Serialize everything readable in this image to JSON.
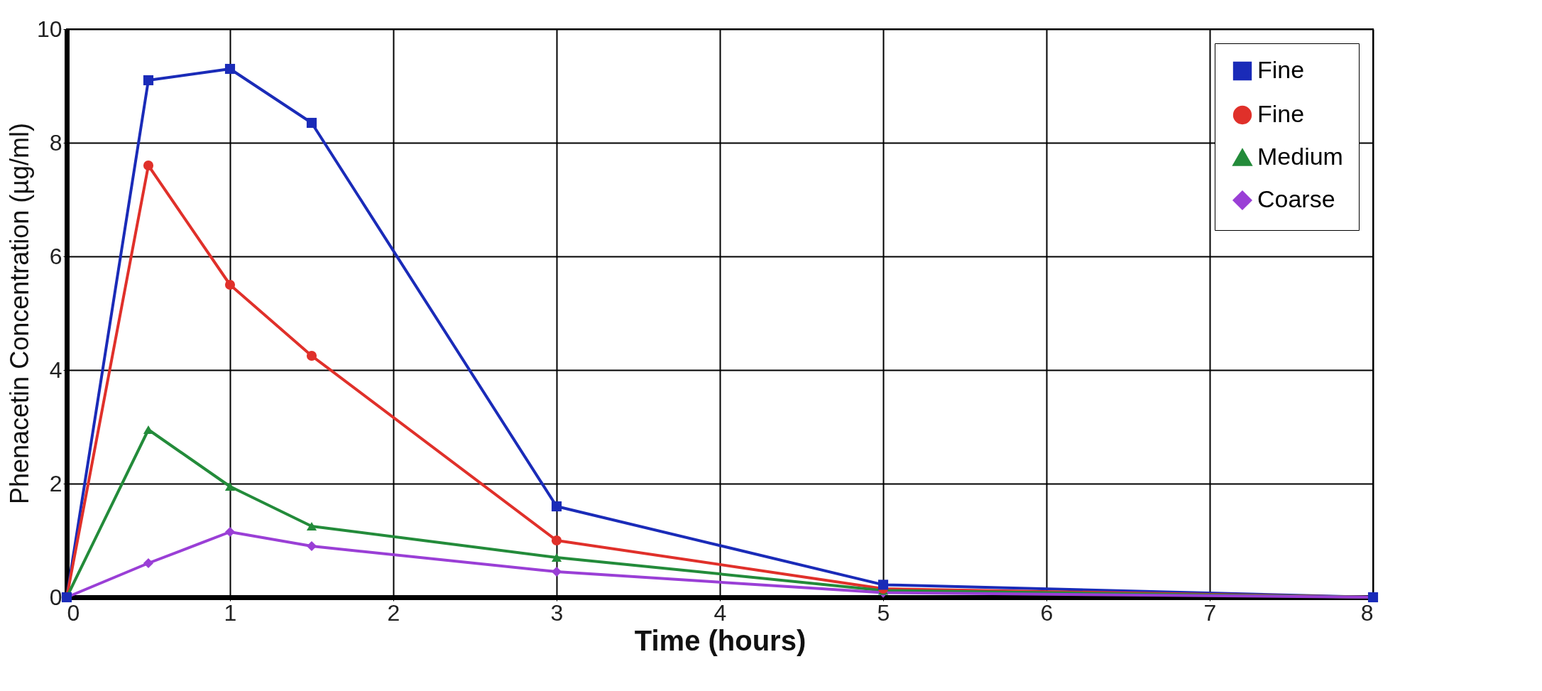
{
  "chart_data": {
    "type": "line",
    "xlabel": "Time (hours)",
    "ylabel": "Phenacetin Concentration (µg/ml)",
    "x": [
      0,
      0.5,
      1,
      1.5,
      3,
      5,
      8
    ],
    "series": [
      {
        "name": "Fine",
        "color": "#1a2bb8",
        "marker": "square",
        "values": [
          0,
          9.1,
          9.3,
          8.35,
          1.6,
          0.22,
          0
        ]
      },
      {
        "name": "Fine",
        "color": "#e0302a",
        "marker": "circle",
        "values": [
          0,
          7.6,
          5.5,
          4.25,
          1.0,
          0.15,
          0
        ]
      },
      {
        "name": "Medium",
        "color": "#238b3a",
        "marker": "triangle",
        "values": [
          0,
          2.95,
          1.95,
          1.25,
          0.7,
          0.12,
          0
        ]
      },
      {
        "name": "Coarse",
        "color": "#9a3fd6",
        "marker": "diamond",
        "values": [
          0,
          0.6,
          1.15,
          0.9,
          0.45,
          0.08,
          0
        ]
      }
    ],
    "xlim": [
      0,
      8
    ],
    "xticks": [
      0,
      1,
      2,
      3,
      4,
      5,
      6,
      7,
      8
    ],
    "ylim": [
      0,
      10
    ],
    "yticks": [
      0,
      2,
      4,
      6,
      8,
      10
    ],
    "grid": true,
    "legend": "top right",
    "line_style": "solid"
  }
}
